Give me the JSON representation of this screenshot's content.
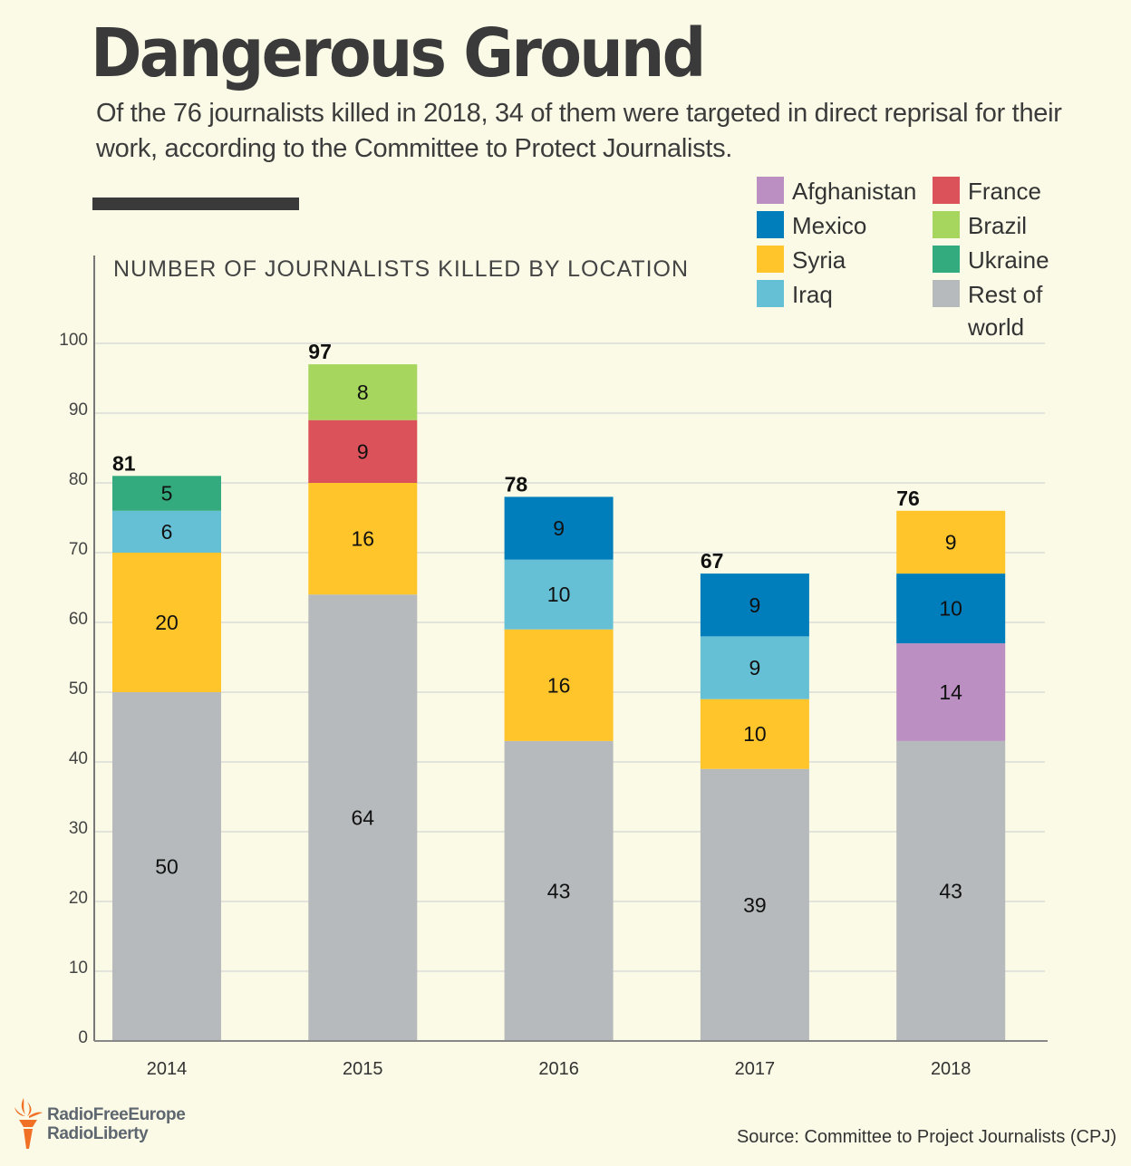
{
  "header": {
    "title": "Dangerous Ground",
    "subtitle": "Of the 76 journalists killed in 2018, 34 of them were targeted in direct reprisal for their work, according to the Committee to Protect Journalists."
  },
  "legend": [
    {
      "key": "afghanistan",
      "label": "Afghanistan",
      "color": "#bb8fc2"
    },
    {
      "key": "mexico",
      "label": "Mexico",
      "color": "#007dbb"
    },
    {
      "key": "syria",
      "label": "Syria",
      "color": "#ffc52b"
    },
    {
      "key": "iraq",
      "label": "Iraq",
      "color": "#66c0d5"
    },
    {
      "key": "france",
      "label": "France",
      "color": "#db525b"
    },
    {
      "key": "brazil",
      "label": "Brazil",
      "color": "#a6d65d"
    },
    {
      "key": "ukraine",
      "label": "Ukraine",
      "color": "#33ab7e"
    },
    {
      "key": "rest",
      "label": "Rest of world",
      "color": "#b6babc"
    }
  ],
  "chart_data": {
    "type": "bar",
    "stacked": true,
    "title": "NUMBER OF JOURNALISTS KILLED BY LOCATION",
    "xlabel": "",
    "ylabel": "",
    "ylim": [
      0,
      100
    ],
    "yticks": [
      0,
      10,
      20,
      30,
      40,
      50,
      60,
      70,
      80,
      90,
      100
    ],
    "grid": true,
    "legend_position": "top-right",
    "categories": [
      "2014",
      "2015",
      "2016",
      "2017",
      "2018"
    ],
    "totals": [
      81,
      97,
      78,
      67,
      76
    ],
    "stacks": [
      [
        {
          "series": "Rest of world",
          "value": 50
        },
        {
          "series": "Syria",
          "value": 20
        },
        {
          "series": "Iraq",
          "value": 6
        },
        {
          "series": "Ukraine",
          "value": 5
        }
      ],
      [
        {
          "series": "Rest of world",
          "value": 64
        },
        {
          "series": "Syria",
          "value": 16
        },
        {
          "series": "France",
          "value": 9
        },
        {
          "series": "Brazil",
          "value": 8
        }
      ],
      [
        {
          "series": "Rest of world",
          "value": 43
        },
        {
          "series": "Syria",
          "value": 16
        },
        {
          "series": "Iraq",
          "value": 10
        },
        {
          "series": "Mexico",
          "value": 9
        }
      ],
      [
        {
          "series": "Rest of world",
          "value": 39
        },
        {
          "series": "Syria",
          "value": 10
        },
        {
          "series": "Iraq",
          "value": 9
        },
        {
          "series": "Mexico",
          "value": 9
        }
      ],
      [
        {
          "series": "Rest of world",
          "value": 43
        },
        {
          "series": "Afghanistan",
          "value": 14
        },
        {
          "series": "Mexico",
          "value": 10
        },
        {
          "series": "Syria",
          "value": 9
        }
      ]
    ],
    "series_colors": {
      "Afghanistan": "#bb8fc2",
      "Mexico": "#007dbb",
      "Syria": "#ffc52b",
      "Iraq": "#66c0d5",
      "France": "#db525b",
      "Brazil": "#a6d65d",
      "Ukraine": "#33ab7e",
      "Rest of world": "#b6babc"
    }
  },
  "footer": {
    "logo_line1": "RadioFreeEurope",
    "logo_line2": "RadioLiberty",
    "source": "Source: Committee to Project Journalists (CPJ)"
  }
}
